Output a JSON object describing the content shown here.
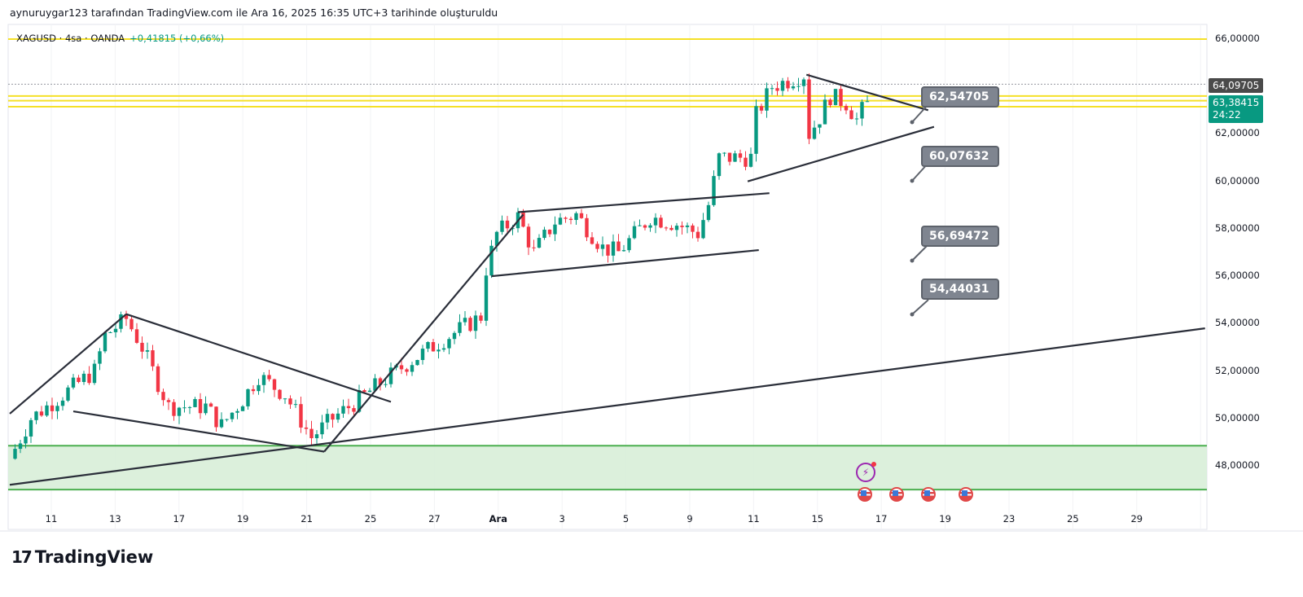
{
  "header": {
    "created_by": "aynuruygar123 tarafından TradingView.com ile Ara 16, 2025 16:35 UTC+3 tarihinde oluşturuldu"
  },
  "legend": {
    "symbol": "XAGUSD · 4sa · OANDA",
    "change": "+0,41815 (+0,66%)"
  },
  "price_tags": {
    "high_line": "64,09705",
    "last": "63,38415",
    "countdown": "24:22"
  },
  "callouts": [
    "62,54705",
    "60,07632",
    "56,69472",
    "54,44031"
  ],
  "brand": "TradingView",
  "chart_data": {
    "type": "candlestick",
    "symbol": "XAGUSD",
    "interval": "4sa",
    "ylim": [
      46.3,
      66.6
    ],
    "y_ticks": [
      "66,00000",
      "62,00000",
      "60,00000",
      "58,00000",
      "56,00000",
      "54,00000",
      "52,00000",
      "50,00000",
      "48,00000"
    ],
    "y_tick_values": [
      66,
      62,
      60,
      58,
      56,
      54,
      52,
      50,
      48
    ],
    "x_ticks": [
      "11",
      "13",
      "17",
      "19",
      "21",
      "25",
      "27",
      "Ara",
      "3",
      "5",
      "9",
      "11",
      "15",
      "17",
      "19",
      "23",
      "25",
      "29"
    ],
    "close_waypoints": [
      [
        0,
        48.3
      ],
      [
        4,
        50
      ],
      [
        10,
        51
      ],
      [
        16,
        52
      ],
      [
        18,
        53.5
      ],
      [
        22,
        54.2
      ],
      [
        25,
        53
      ],
      [
        30,
        50.5
      ],
      [
        37,
        50.5
      ],
      [
        40,
        49.7
      ],
      [
        44,
        50.8
      ],
      [
        47,
        51.8
      ],
      [
        52,
        51
      ],
      [
        57,
        49.2
      ],
      [
        61,
        50
      ],
      [
        66,
        50.8
      ],
      [
        70,
        51.5
      ],
      [
        75,
        52.3
      ],
      [
        81,
        53.2
      ],
      [
        89,
        54.3
      ],
      [
        90,
        56.3
      ],
      [
        92,
        57.8
      ],
      [
        96,
        58.5
      ],
      [
        99,
        57
      ],
      [
        103,
        58.3
      ],
      [
        107,
        58.6
      ],
      [
        112,
        57.2
      ],
      [
        115,
        57
      ],
      [
        121,
        58.5
      ],
      [
        126,
        58.2
      ],
      [
        130,
        57.8
      ],
      [
        132,
        59
      ],
      [
        134,
        61
      ],
      [
        137,
        61
      ],
      [
        140,
        61
      ],
      [
        141,
        62.8
      ],
      [
        144,
        64
      ],
      [
        150,
        64.5
      ],
      [
        151,
        62
      ],
      [
        153,
        62.7
      ],
      [
        155,
        63.6
      ],
      [
        158,
        63.3
      ],
      [
        160,
        62.6
      ],
      [
        162,
        63.38
      ]
    ],
    "horizontal_levels": [
      {
        "price": 66,
        "color": "#f5e027"
      },
      {
        "price": 63.6,
        "color": "#f5e027"
      },
      {
        "price": 63.4,
        "color": "#f5e027"
      },
      {
        "price": 63.15,
        "color": "#f5e027"
      },
      {
        "price": 64.097,
        "color": "#9598a1",
        "style": "dotted"
      }
    ],
    "zone": {
      "from": 47.0,
      "to": 48.85,
      "color": "#4caf50"
    },
    "trendlines": [
      [
        [
          0,
          50.2
        ],
        [
          22,
          54.4
        ]
      ],
      [
        [
          22,
          54.4
        ],
        [
          72,
          50.7
        ]
      ],
      [
        [
          12,
          50.3
        ],
        [
          59.4,
          48.6
        ]
      ],
      [
        [
          59.4,
          48.6
        ],
        [
          97,
          58.6
        ]
      ],
      [
        [
          0,
          47.2
        ],
        [
          225.8,
          53.8
        ]
      ],
      [
        [
          96,
          58.7
        ],
        [
          143.5,
          59.5
        ]
      ],
      [
        [
          91,
          56
        ],
        [
          141.5,
          57.1
        ]
      ],
      [
        [
          139.4,
          60
        ],
        [
          174.6,
          62.3
        ]
      ],
      [
        [
          150.5,
          64.5
        ],
        [
          173.5,
          63.0
        ]
      ]
    ],
    "colors": {
      "up": "#089981",
      "down": "#f23645",
      "last_tag": "#089981",
      "high_tag": "#4a4a4a"
    }
  }
}
